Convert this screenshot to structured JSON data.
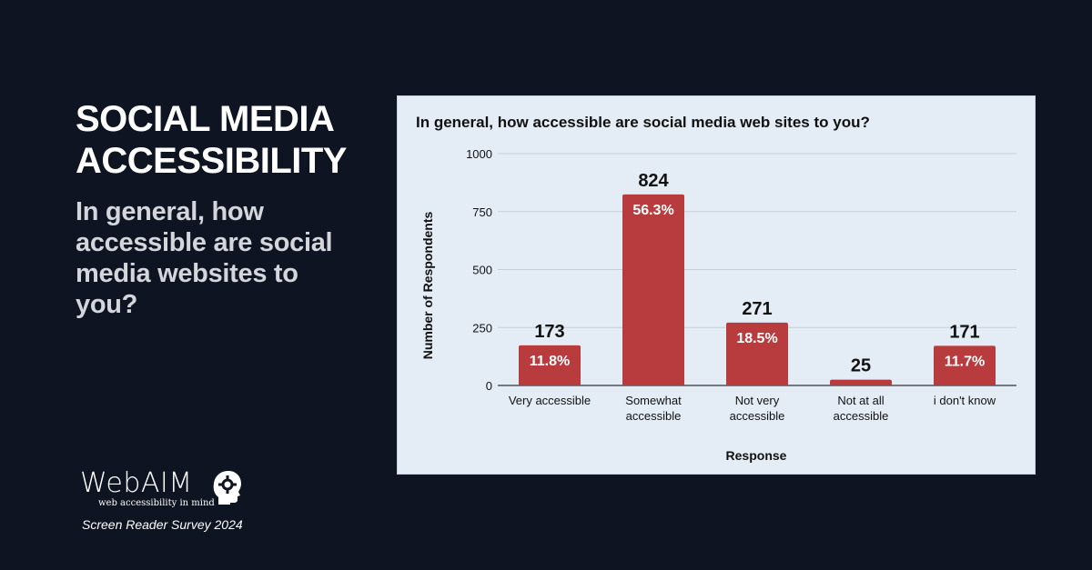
{
  "headline": [
    "SOCIAL MEDIA",
    "ACCESSIBILITY"
  ],
  "subheading": "In general, how accessible are social media websites to you?",
  "brand": {
    "name": "WebAIM",
    "tagline": "web accessibility in mind",
    "survey": "Screen Reader Survey 2024"
  },
  "colors": {
    "background": "#0e1421",
    "panel": "#e4edf6",
    "bar": "#b83c3e"
  },
  "chart_data": {
    "type": "bar",
    "title": "In general, how accessible are social media web sites to you?",
    "xlabel": "Response",
    "ylabel": "Number of Respondents",
    "categories": [
      [
        "Very accessible"
      ],
      [
        "Somewhat",
        "accessible"
      ],
      [
        "Not very",
        "accessible"
      ],
      [
        "Not at all",
        "accessible"
      ],
      [
        "i don't know"
      ]
    ],
    "values": [
      173,
      824,
      271,
      25,
      171
    ],
    "percent_labels": [
      "11.8%",
      "56.3%",
      "18.5%",
      "",
      "11.7%"
    ],
    "yticks": [
      0,
      250,
      500,
      750,
      1000
    ],
    "ylim": [
      0,
      1000
    ],
    "grid": true,
    "legend": "none"
  }
}
